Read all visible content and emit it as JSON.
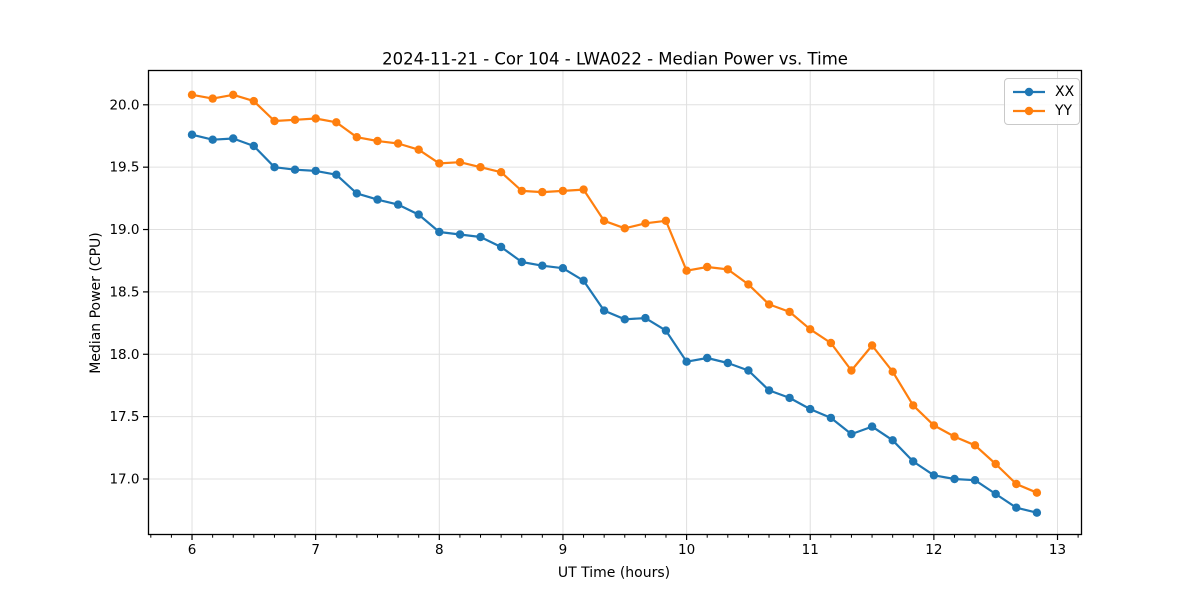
{
  "chart_data": {
    "type": "line",
    "title": "2024-11-21 - Cor 104 - LWA022 - Median Power vs. Time",
    "xlabel": "UT Time (hours)",
    "ylabel": "Median Power (CPU)",
    "grid": "major-both",
    "legend_position": "upper right",
    "axes": {
      "x": {
        "label": "UT Time (hours)",
        "min": 5.648,
        "max": 13.194,
        "major_ticks": [
          6,
          7,
          8,
          9,
          10,
          11,
          12,
          13
        ],
        "tick_labels": [
          "6",
          "7",
          "8",
          "9",
          "10",
          "11",
          "12",
          "13"
        ],
        "minor_divisions": 6
      },
      "y": {
        "label": "Median Power (CPU)",
        "min": 16.555,
        "max": 20.275,
        "major_ticks": [
          17.0,
          17.5,
          18.0,
          18.5,
          19.0,
          19.5,
          20.0
        ],
        "tick_labels": [
          "17.0",
          "17.5",
          "18.0",
          "18.5",
          "19.0",
          "19.5",
          "20.0"
        ]
      }
    },
    "x": [
      6.0,
      6.167,
      6.333,
      6.5,
      6.667,
      6.833,
      7.0,
      7.167,
      7.333,
      7.5,
      7.667,
      7.833,
      8.0,
      8.167,
      8.333,
      8.5,
      8.667,
      8.833,
      9.0,
      9.167,
      9.333,
      9.5,
      9.667,
      9.833,
      10.0,
      10.167,
      10.333,
      10.5,
      10.667,
      10.833,
      11.0,
      11.167,
      11.333,
      11.5,
      11.667,
      11.833,
      12.0,
      12.167,
      12.333,
      12.5,
      12.667,
      12.833
    ],
    "series": [
      {
        "name": "XX",
        "color": "#1f77b4",
        "values": [
          19.76,
          19.72,
          19.73,
          19.67,
          19.5,
          19.48,
          19.47,
          19.44,
          19.29,
          19.24,
          19.2,
          19.12,
          18.98,
          18.96,
          18.94,
          18.86,
          18.74,
          18.71,
          18.69,
          18.59,
          18.35,
          18.28,
          18.29,
          18.19,
          17.94,
          17.97,
          17.93,
          17.87,
          17.71,
          17.65,
          17.56,
          17.49,
          17.36,
          17.42,
          17.31,
          17.14,
          17.03,
          17.0,
          16.99,
          16.88,
          16.77,
          16.73
        ]
      },
      {
        "name": "YY",
        "color": "#ff7f0e",
        "values": [
          20.08,
          20.05,
          20.08,
          20.03,
          19.87,
          19.88,
          19.89,
          19.86,
          19.74,
          19.71,
          19.69,
          19.64,
          19.53,
          19.54,
          19.5,
          19.46,
          19.31,
          19.3,
          19.31,
          19.32,
          19.07,
          19.01,
          19.05,
          19.07,
          18.67,
          18.7,
          18.68,
          18.56,
          18.4,
          18.34,
          18.2,
          18.09,
          17.87,
          18.07,
          17.86,
          17.59,
          17.43,
          17.34,
          17.27,
          17.12,
          16.96,
          16.89
        ]
      }
    ],
    "style": {
      "grid_color": "#e0e0e0",
      "spine_color": "#000000",
      "tick_color": "#000000",
      "background": "#ffffff",
      "line_width": 2.2,
      "marker_radius": 4.2
    }
  }
}
